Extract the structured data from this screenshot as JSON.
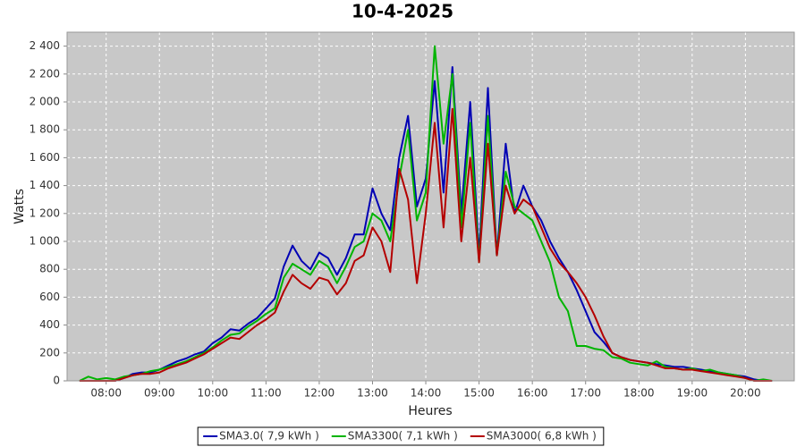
{
  "chart_data": {
    "type": "line",
    "title": "10-4-2025",
    "x_label": "Heures",
    "y_label": "Watts",
    "x": [
      "07:30",
      "07:40",
      "07:50",
      "08:00",
      "08:10",
      "08:20",
      "08:30",
      "08:40",
      "08:50",
      "09:00",
      "09:10",
      "09:20",
      "09:30",
      "09:40",
      "09:50",
      "10:00",
      "10:10",
      "10:20",
      "10:30",
      "10:40",
      "10:50",
      "11:00",
      "11:10",
      "11:20",
      "11:30",
      "11:40",
      "11:50",
      "12:00",
      "12:10",
      "12:20",
      "12:30",
      "12:40",
      "12:50",
      "13:00",
      "13:10",
      "13:20",
      "13:30",
      "13:40",
      "13:50",
      "14:00",
      "14:10",
      "14:20",
      "14:30",
      "14:40",
      "14:50",
      "15:00",
      "15:10",
      "15:20",
      "15:30",
      "15:40",
      "15:50",
      "16:00",
      "16:10",
      "16:20",
      "16:30",
      "16:40",
      "16:50",
      "17:00",
      "17:10",
      "17:20",
      "17:30",
      "17:40",
      "17:50",
      "18:00",
      "18:10",
      "18:20",
      "18:30",
      "18:40",
      "18:50",
      "19:00",
      "19:10",
      "19:20",
      "19:30",
      "19:40",
      "19:50",
      "20:00",
      "20:10",
      "20:20",
      "20:30"
    ],
    "series": [
      {
        "name": "SMA3.0( 7,9 kWh )",
        "color": "#0000b4",
        "values": [
          0,
          0,
          0,
          0,
          0,
          20,
          50,
          60,
          60,
          80,
          110,
          140,
          160,
          190,
          210,
          270,
          310,
          370,
          360,
          410,
          450,
          520,
          590,
          820,
          970,
          860,
          800,
          920,
          880,
          760,
          880,
          1050,
          1050,
          1380,
          1200,
          1080,
          1600,
          1900,
          1250,
          1450,
          2150,
          1350,
          2250,
          1200,
          2000,
          900,
          2100,
          900,
          1700,
          1200,
          1400,
          1250,
          1150,
          1000,
          880,
          780,
          650,
          500,
          350,
          280,
          200,
          170,
          150,
          140,
          130,
          120,
          110,
          100,
          100,
          90,
          80,
          70,
          60,
          50,
          40,
          30,
          10,
          0,
          0
        ]
      },
      {
        "name": "SMA3300( 7,1 kWh )",
        "color": "#00b400",
        "values": [
          0,
          30,
          10,
          20,
          10,
          30,
          40,
          50,
          70,
          80,
          100,
          120,
          140,
          170,
          200,
          240,
          290,
          330,
          340,
          390,
          430,
          480,
          520,
          740,
          840,
          800,
          760,
          860,
          820,
          700,
          820,
          960,
          1000,
          1200,
          1150,
          1000,
          1450,
          1800,
          1150,
          1350,
          2400,
          1700,
          2200,
          1100,
          1850,
          850,
          1900,
          900,
          1500,
          1250,
          1200,
          1150,
          1000,
          850,
          600,
          500,
          250,
          250,
          230,
          220,
          170,
          160,
          130,
          120,
          110,
          140,
          100,
          90,
          80,
          90,
          70,
          80,
          60,
          50,
          40,
          20,
          0,
          10,
          0
        ]
      },
      {
        "name": "SMA3000( 6,8 kWh )",
        "color": "#b40000",
        "values": [
          0,
          0,
          0,
          0,
          0,
          20,
          40,
          50,
          50,
          60,
          90,
          110,
          130,
          160,
          190,
          230,
          270,
          310,
          300,
          350,
          400,
          440,
          490,
          640,
          760,
          700,
          660,
          740,
          720,
          620,
          700,
          860,
          900,
          1100,
          1000,
          780,
          1520,
          1300,
          700,
          1200,
          1850,
          1100,
          1950,
          1000,
          1600,
          850,
          1700,
          900,
          1400,
          1200,
          1300,
          1250,
          1100,
          950,
          850,
          780,
          700,
          600,
          470,
          320,
          200,
          170,
          150,
          140,
          130,
          110,
          90,
          90,
          80,
          80,
          70,
          60,
          50,
          40,
          30,
          20,
          0,
          0,
          0
        ]
      }
    ],
    "xlim": [
      "07:16",
      "20:55"
    ],
    "xticks": [
      "08:00",
      "09:00",
      "10:00",
      "11:00",
      "12:00",
      "13:00",
      "14:00",
      "15:00",
      "16:00",
      "17:00",
      "18:00",
      "19:00",
      "20:00"
    ],
    "ylim": [
      0,
      2500
    ],
    "yticks": [
      0,
      200,
      400,
      600,
      800,
      {
        "value": 1000,
        "label": "1 000"
      },
      {
        "value": 1200,
        "label": "1 200"
      },
      {
        "value": 1400,
        "label": "1 400"
      },
      {
        "value": 1600,
        "label": "1 600"
      },
      {
        "value": 1800,
        "label": "1 800"
      },
      {
        "value": 2000,
        "label": "2 000"
      },
      {
        "value": 2200,
        "label": "2 200"
      },
      {
        "value": 2400,
        "label": "2 400"
      }
    ],
    "grid": true,
    "legend": "bottom"
  }
}
